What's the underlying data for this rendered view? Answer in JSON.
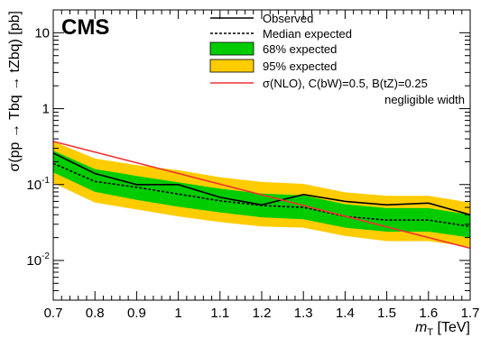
{
  "chart_data": {
    "type": "line",
    "experiment_label": "CMS",
    "xlabel_var": "m",
    "xlabel_sub": "T",
    "xlabel_unit": " [TeV]",
    "ylabel": "σ(pp → Tbq → tZbq) [pb]",
    "xlim": [
      0.7,
      1.7
    ],
    "ylim": [
      0.003,
      20
    ],
    "yscale": "log",
    "x_ticks": [
      0.7,
      0.8,
      0.9,
      1,
      1.1,
      1.2,
      1.3,
      1.4,
      1.5,
      1.6,
      1.7
    ],
    "x_tick_labels": [
      "0.7",
      "0.8",
      "0.9",
      "1",
      "1.1",
      "1.2",
      "1.3",
      "1.4",
      "1.5",
      "1.6",
      "1.7"
    ],
    "y_tick_labels": [
      {
        "value": 0.01,
        "base": "10",
        "exp": "-2"
      },
      {
        "value": 0.1,
        "base": "10",
        "exp": "-1"
      },
      {
        "value": 1,
        "base": "1",
        "exp": ""
      },
      {
        "value": 10,
        "base": "10",
        "exp": ""
      }
    ],
    "x": [
      0.7,
      0.8,
      0.9,
      1.0,
      1.1,
      1.2,
      1.3,
      1.4,
      1.5,
      1.6,
      1.7
    ],
    "observed": [
      0.26,
      0.14,
      0.1,
      0.1,
      0.068,
      0.054,
      0.074,
      0.06,
      0.054,
      0.057,
      0.04
    ],
    "expected": [
      0.19,
      0.11,
      0.092,
      0.075,
      0.061,
      0.053,
      0.05,
      0.038,
      0.034,
      0.034,
      0.028
    ],
    "band68_low": [
      0.145,
      0.08,
      0.063,
      0.051,
      0.043,
      0.037,
      0.035,
      0.027,
      0.024,
      0.024,
      0.02
    ],
    "band68_high": [
      0.28,
      0.16,
      0.13,
      0.107,
      0.088,
      0.076,
      0.072,
      0.055,
      0.049,
      0.049,
      0.04
    ],
    "band95_low": [
      0.105,
      0.058,
      0.047,
      0.038,
      0.032,
      0.028,
      0.027,
      0.021,
      0.018,
      0.018,
      0.015
    ],
    "band95_high": [
      0.37,
      0.22,
      0.18,
      0.155,
      0.125,
      0.108,
      0.102,
      0.079,
      0.071,
      0.071,
      0.058
    ],
    "theory_x": [
      0.7,
      1.7
    ],
    "theory": [
      0.37,
      0.0145
    ],
    "legend_position": "top-right",
    "legend": [
      {
        "key": "observed",
        "label": "Observed",
        "style": "solid-line"
      },
      {
        "key": "expected",
        "label": "Median expected",
        "style": "dashed-line"
      },
      {
        "key": "band68",
        "label": "68% expected",
        "style": "box"
      },
      {
        "key": "band95",
        "label": "95% expected",
        "style": "box"
      },
      {
        "key": "theory",
        "label": "σ(NLO), C(bW)=0.5, B(tZ)=0.25",
        "style": "solid-line"
      },
      {
        "key": "theory_note",
        "label": "negligible width",
        "style": "none"
      }
    ],
    "colors": {
      "band68": "#00cc00",
      "band95": "#ffcc00",
      "observed": "#000000",
      "expected": "#000000",
      "theory": "#ee3333"
    }
  }
}
